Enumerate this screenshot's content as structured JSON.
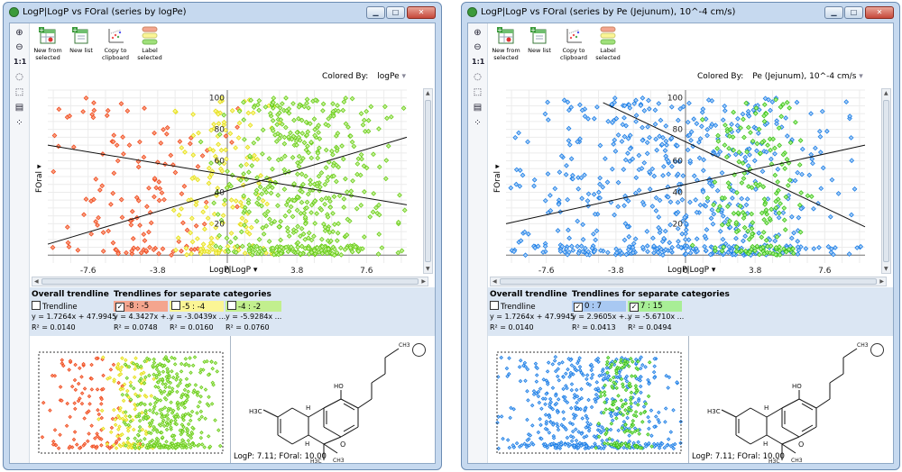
{
  "left": {
    "title": "LogP|LogP vs FOral (series by logPe)",
    "toolbar": {
      "new_from_selected": [
        "New from",
        "selected"
      ],
      "new_list": [
        "New list",
        ""
      ],
      "copy_clipboard": [
        "Copy to",
        "clipboard"
      ],
      "label_selected": [
        "Label",
        "selected"
      ]
    },
    "colored_by_label": "Colored By:",
    "colored_by_value": "logPe",
    "x_axis_label": "LogP|LogP",
    "y_axis_label": "FOral",
    "trend": {
      "overall_header": "Overall trendline",
      "categories_header": "Trendlines for separate categories",
      "overall_checkbox": "Trendline",
      "overall_eq": "y = 1.7264x + 47.9945",
      "overall_r2": "R² = 0.0140",
      "categories": [
        {
          "label": "-8 : -5",
          "checked": true,
          "color": "#f4a58e",
          "eq": "y = 4.3427x +...",
          "r2": "R² = 0.0748"
        },
        {
          "label": "-5 : -4",
          "checked": false,
          "color": "#fbf595",
          "eq": "y = -3.0439x ...",
          "r2": "R² = 0.0160"
        },
        {
          "label": "-4 : -2",
          "checked": false,
          "color": "#c2ef8e",
          "eq": "y = -5.9284x ...",
          "r2": "R² = 0.0760"
        }
      ]
    },
    "status": "LogP: 7.11; FOral: 10.00"
  },
  "right": {
    "title": "LogP|LogP vs FOral (series by Pe (Jejunum), 10^-4 cm/s)",
    "toolbar": {
      "new_from_selected": [
        "New from",
        "selected"
      ],
      "new_list": [
        "New list",
        ""
      ],
      "copy_clipboard": [
        "Copy to",
        "clipboard"
      ],
      "label_selected": [
        "Label",
        "selected"
      ]
    },
    "colored_by_label": "Colored By:",
    "colored_by_value": "Pe (Jejunum), 10^-4 cm/s",
    "x_axis_label": "LogP|LogP",
    "y_axis_label": "FOral",
    "trend": {
      "overall_header": "Overall trendline",
      "categories_header": "Trendlines for separate categories",
      "overall_checkbox": "Trendline",
      "overall_eq": "y = 1.7264x + 47.9945",
      "overall_r2": "R² = 0.0140",
      "categories": [
        {
          "label": "0 : 7",
          "checked": true,
          "color": "#a8c8f2",
          "eq": "y = 2.9605x +...",
          "r2": "R² = 0.0413"
        },
        {
          "label": "7 : 15",
          "checked": true,
          "color": "#a8ee96",
          "eq": "y = -5.6710x ...",
          "r2": "R² = 0.0494"
        }
      ]
    },
    "status": "LogP: 7.11; FOral: 10.00"
  },
  "chart_data": [
    {
      "type": "scatter",
      "title": "LogP|LogP vs FOral (series by logPe)",
      "xlabel": "LogP|LogP",
      "ylabel": "FOral",
      "xlim": [
        -9.8,
        9.8
      ],
      "ylim": [
        -5,
        105
      ],
      "x_ticks": [
        "-7.6",
        "-3.8",
        "0",
        "3.8",
        "7.6"
      ],
      "y_ticks": [
        "20",
        "40",
        "60",
        "80",
        "100"
      ],
      "grid": true,
      "series": [
        {
          "name": "-8 : -5",
          "color": "#f04a1e",
          "fill": "#f9a183",
          "x_range": [
            -9.5,
            0
          ],
          "count": 140
        },
        {
          "name": "-5 : -4",
          "color": "#e3de18",
          "fill": "#fbf68c",
          "x_range": [
            -2.5,
            2.5
          ],
          "count": 150
        },
        {
          "name": "-4 : -2",
          "color": "#69cc17",
          "fill": "#c5f09a",
          "x_range": [
            0,
            8.5
          ],
          "count": 520
        }
      ],
      "trendlines": [
        {
          "from": [
            -9.8,
            7
          ],
          "to": [
            9.8,
            75
          ]
        },
        {
          "from": [
            -9.8,
            70
          ],
          "to": [
            9.8,
            32
          ]
        }
      ]
    },
    {
      "type": "scatter",
      "title": "LogP|LogP vs FOral (series by Pe (Jejunum), 10^-4 cm/s)",
      "xlabel": "LogP|LogP",
      "ylabel": "FOral",
      "xlim": [
        -9.8,
        9.8
      ],
      "ylim": [
        -5,
        105
      ],
      "x_ticks": [
        "-7.6",
        "-3.8",
        "0",
        "3.8",
        "7.6"
      ],
      "y_ticks": [
        "20",
        "40",
        "60",
        "80",
        "100"
      ],
      "grid": true,
      "series": [
        {
          "name": "0 : 7",
          "color": "#1a7de6",
          "fill": "#a7cdf5",
          "x_range": [
            -9.5,
            9.5
          ],
          "count": 650
        },
        {
          "name": "7 : 15",
          "color": "#3ec21a",
          "fill": "#aaf08e",
          "x_range": [
            1,
            6.5
          ],
          "count": 190
        }
      ],
      "trendlines": [
        {
          "from": [
            -9.8,
            20
          ],
          "to": [
            9.8,
            70
          ]
        },
        {
          "from": [
            -4.5,
            97
          ],
          "to": [
            9.8,
            18
          ]
        }
      ]
    }
  ]
}
